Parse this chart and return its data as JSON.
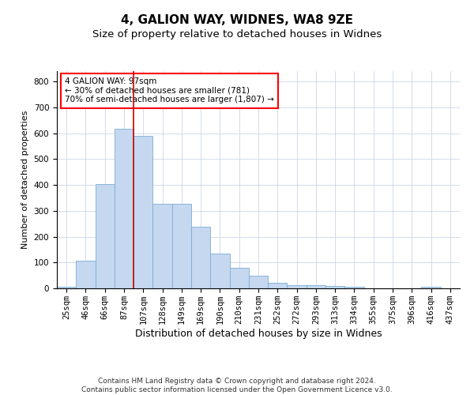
{
  "title": "4, GALION WAY, WIDNES, WA8 9ZE",
  "subtitle": "Size of property relative to detached houses in Widnes",
  "xlabel": "Distribution of detached houses by size in Widnes",
  "ylabel": "Number of detached properties",
  "categories": [
    "25sqm",
    "46sqm",
    "66sqm",
    "87sqm",
    "107sqm",
    "128sqm",
    "149sqm",
    "169sqm",
    "190sqm",
    "210sqm",
    "231sqm",
    "252sqm",
    "272sqm",
    "293sqm",
    "313sqm",
    "334sqm",
    "355sqm",
    "375sqm",
    "396sqm",
    "416sqm",
    "437sqm"
  ],
  "values": [
    7,
    108,
    403,
    617,
    590,
    328,
    328,
    238,
    135,
    78,
    50,
    20,
    13,
    13,
    10,
    5,
    0,
    0,
    0,
    7,
    0
  ],
  "bar_color": "#c5d8f0",
  "bar_edge_color": "#7aadd4",
  "red_line_x": 3.5,
  "annotation_text": "4 GALION WAY: 97sqm\n← 30% of detached houses are smaller (781)\n70% of semi-detached houses are larger (1,807) →",
  "annotation_box_color": "white",
  "annotation_box_edge_color": "red",
  "red_line_color": "#cc0000",
  "ylim": [
    0,
    840
  ],
  "yticks": [
    0,
    100,
    200,
    300,
    400,
    500,
    600,
    700,
    800
  ],
  "grid_color": "#ccd6e8",
  "footer_line1": "Contains HM Land Registry data © Crown copyright and database right 2024.",
  "footer_line2": "Contains public sector information licensed under the Open Government Licence v3.0.",
  "title_fontsize": 11,
  "subtitle_fontsize": 9.5,
  "xlabel_fontsize": 9,
  "ylabel_fontsize": 8,
  "tick_fontsize": 7.5,
  "footer_fontsize": 6.5,
  "annotation_fontsize": 7.5
}
